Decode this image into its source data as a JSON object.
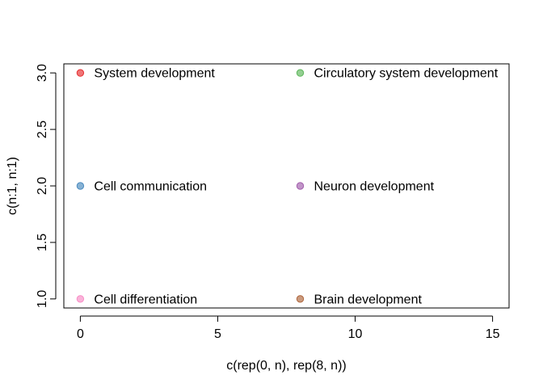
{
  "chart_data": {
    "type": "scatter",
    "xlabel": "c(rep(0, n), rep(8, n))",
    "ylabel": "c(n:1, n:1)",
    "xlim": [
      -0.6,
      15.6
    ],
    "ylim": [
      0.92,
      3.08
    ],
    "x_ticks": [
      0,
      5,
      10,
      15
    ],
    "y_ticks": [
      1.0,
      1.5,
      2.0,
      2.5,
      3.0
    ],
    "x_tick_labels": [
      "0",
      "5",
      "10",
      "15"
    ],
    "y_tick_labels": [
      "1.0",
      "1.5",
      "2.0",
      "2.5",
      "3.0"
    ],
    "grid": false,
    "points": [
      {
        "x": 0,
        "y": 3,
        "label": "System development",
        "color": "#E41A1C"
      },
      {
        "x": 0,
        "y": 2,
        "label": "Cell communication",
        "color": "#377EB8"
      },
      {
        "x": 0,
        "y": 1,
        "label": "Cell differentiation",
        "color": "#F781BF"
      },
      {
        "x": 8,
        "y": 3,
        "label": "Circulatory system development",
        "color": "#4DAF4A"
      },
      {
        "x": 8,
        "y": 2,
        "label": "Neuron development",
        "color": "#984EA3"
      },
      {
        "x": 8,
        "y": 1,
        "label": "Brain development",
        "color": "#A65628"
      }
    ]
  }
}
